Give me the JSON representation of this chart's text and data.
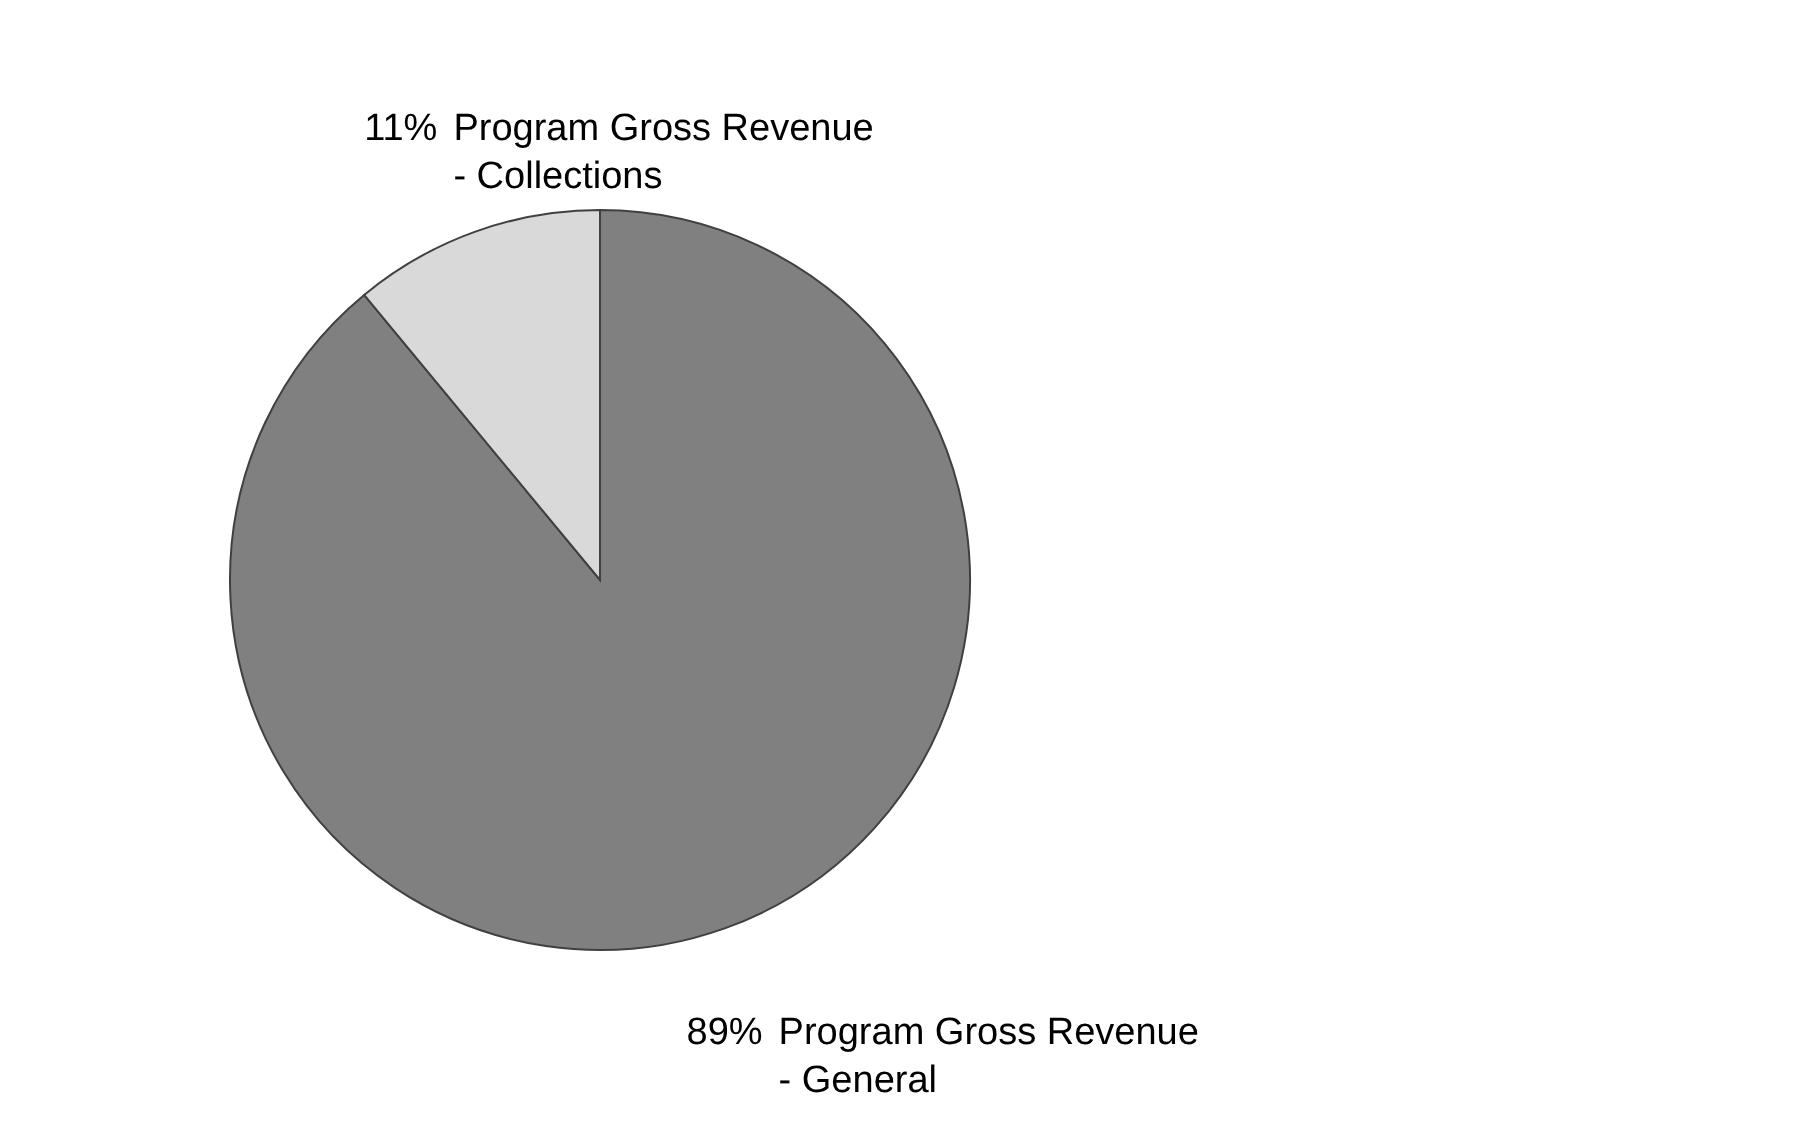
{
  "chart_data": {
    "type": "pie",
    "categories": [
      "Program Gross Revenue - General",
      "Program Gross Revenue - Collections"
    ],
    "values": [
      89,
      11
    ],
    "colors": [
      "#808080",
      "#d9d9d9"
    ],
    "value_labels": [
      "89%",
      "11%"
    ],
    "legend": false
  }
}
